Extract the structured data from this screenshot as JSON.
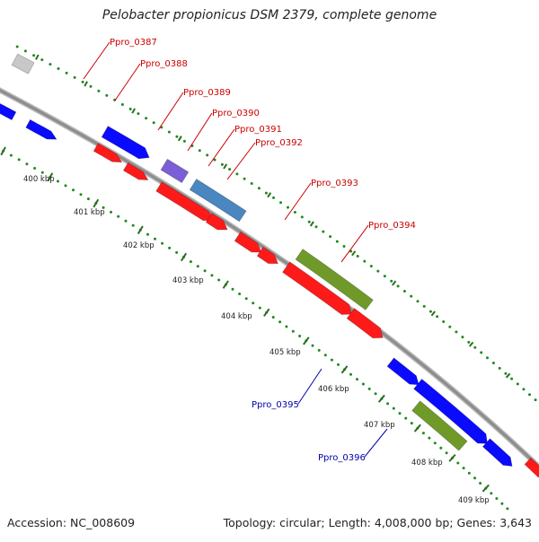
{
  "title": "Pelobacter propionicus DSM 2379, complete genome",
  "accession": "Accession: NC_008609",
  "topology": "Topology: circular; Length: 4,008,000 bp; Genes: 3,643",
  "colors": {
    "backbone": "#8c8c8c",
    "tick_dots": "#1e8a1e",
    "forward_label": "#cc0000",
    "reverse_label": "#0000aa",
    "gene_red": "#ff1a1a",
    "gene_blue": "#0a0aff",
    "gene_purple": "#7b5fd6",
    "gene_steel": "#4a86c0",
    "gene_olive": "#6f9a2a",
    "gene_gray": "#c8c8c8"
  },
  "scale_labels": [
    "400 kbp",
    "401 kbp",
    "402 kbp",
    "403 kbp",
    "404 kbp",
    "405 kbp",
    "406 kbp",
    "407 kbp",
    "408 kbp",
    "409 kbp"
  ],
  "gene_labels": [
    {
      "text": "Ppro_0387",
      "strand": "forward"
    },
    {
      "text": "Ppro_0388",
      "strand": "forward"
    },
    {
      "text": "Ppro_0389",
      "strand": "forward"
    },
    {
      "text": "Ppro_0390",
      "strand": "forward"
    },
    {
      "text": "Ppro_0391",
      "strand": "forward"
    },
    {
      "text": "Ppro_0392",
      "strand": "forward"
    },
    {
      "text": "Ppro_0393",
      "strand": "forward"
    },
    {
      "text": "Ppro_0394",
      "strand": "forward"
    },
    {
      "text": "Ppro_0395",
      "strand": "reverse"
    },
    {
      "text": "Ppro_0396",
      "strand": "reverse"
    }
  ]
}
